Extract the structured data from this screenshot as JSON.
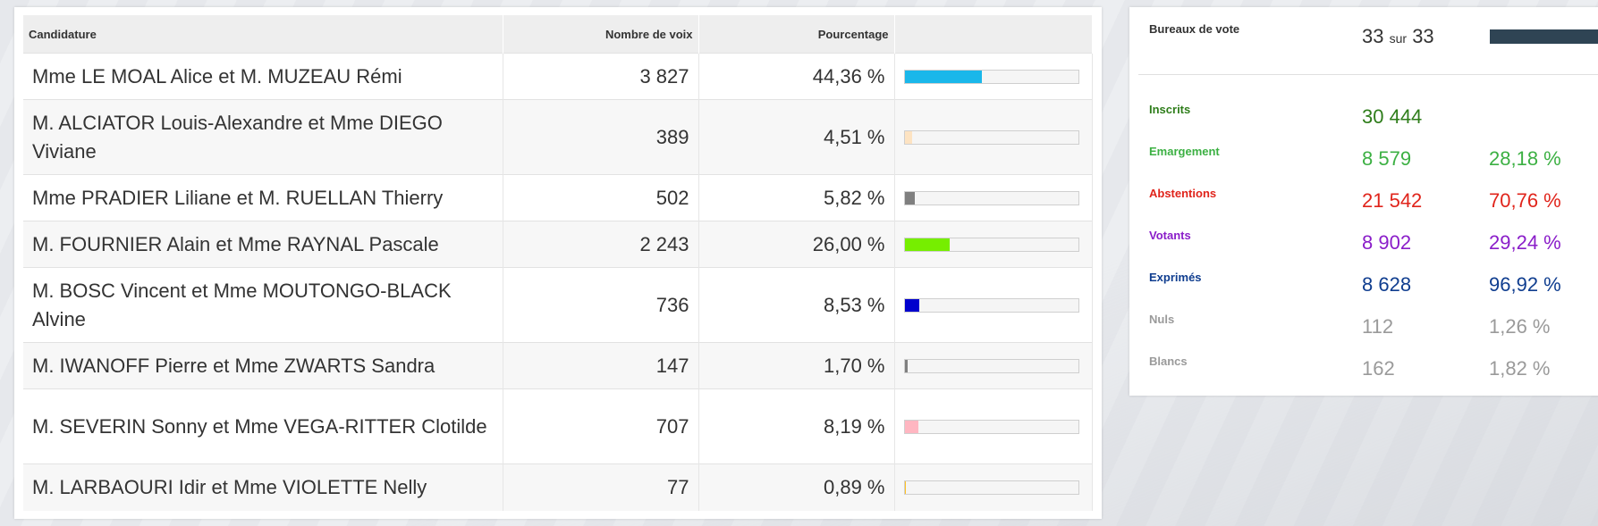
{
  "table": {
    "headers": {
      "candidature": "Candidature",
      "voix": "Nombre de voix",
      "pourcentage": "Pourcentage"
    },
    "rows": [
      {
        "name": "Mme LE MOAL Alice et M. MUZEAU Rémi",
        "votes": "3 827",
        "percent": "44,36 %",
        "share": 44.36,
        "color": "#1ab7ea"
      },
      {
        "name": "M. ALCIATOR Louis-Alexandre et Mme DIEGO Viviane",
        "votes": "389",
        "percent": "4,51 %",
        "share": 4.51,
        "color": "#fde3c2"
      },
      {
        "name": "Mme PRADIER Liliane et M. RUELLAN Thierry",
        "votes": "502",
        "percent": "5,82 %",
        "share": 5.82,
        "color": "#7f7f7f"
      },
      {
        "name": "M. FOURNIER Alain et Mme RAYNAL Pascale",
        "votes": "2 243",
        "percent": "26,00 %",
        "share": 26.0,
        "color": "#76ee00"
      },
      {
        "name": "M. BOSC Vincent et Mme MOUTONGO-BLACK Alvine",
        "votes": "736",
        "percent": "8,53 %",
        "share": 8.53,
        "color": "#0000cd"
      },
      {
        "name": "M. IWANOFF Pierre et Mme ZWARTS Sandra",
        "votes": "147",
        "percent": "1,70 %",
        "share": 1.7,
        "color": "#808080"
      },
      {
        "name": "M. SEVERIN Sonny et Mme VEGA-RITTER Clotilde",
        "votes": "707",
        "percent": "8,19 %",
        "share": 8.19,
        "color": "#ffb6c1"
      },
      {
        "name": "M. LARBAOURI Idir et Mme VIOLETTE Nelly",
        "votes": "77",
        "percent": "0,89 %",
        "share": 0.89,
        "color": "#ffc125"
      }
    ]
  },
  "stats": {
    "bureaux": {
      "label": "Bureaux de vote",
      "count": "33",
      "sur": "sur",
      "total": "33",
      "progress": 100
    },
    "inscrits": {
      "label": "Inscrits",
      "value": "30 444",
      "color": "#2e7d1a"
    },
    "emargement": {
      "label": "Emargement",
      "value": "8 579",
      "percent": "28,18 %",
      "color": "#3cb043"
    },
    "abstentions": {
      "label": "Abstentions",
      "value": "21 542",
      "percent": "70,76 %",
      "color": "#e0241b"
    },
    "votants": {
      "label": "Votants",
      "value": "8 902",
      "percent": "29,24 %",
      "color": "#8a1dc9"
    },
    "exprimes": {
      "label": "Exprimés",
      "value": "8 628",
      "percent": "96,92 %",
      "color": "#0f3d8f"
    },
    "nuls": {
      "label": "Nuls",
      "value": "112",
      "percent": "1,26 %",
      "color": "#9a9a9a"
    },
    "blancs": {
      "label": "Blancs",
      "value": "162",
      "percent": "1,82 %",
      "color": "#9a9a9a"
    }
  }
}
